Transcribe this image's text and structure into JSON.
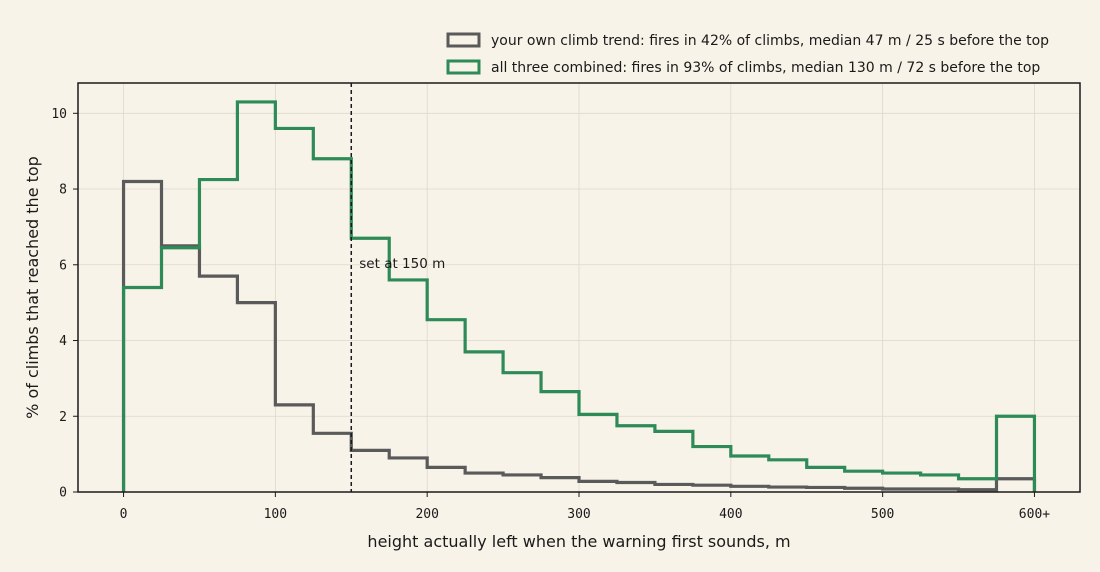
{
  "chart_data": {
    "type": "histogram",
    "xlabel": "height actually left when the warning first sounds, m",
    "ylabel": "% of climbs that reached the top",
    "xlim": [
      -30,
      630
    ],
    "ylim": [
      0,
      10.8
    ],
    "x_ticks": [
      0,
      100,
      200,
      300,
      400,
      500,
      600
    ],
    "x_tick_labels": [
      "0",
      "100",
      "200",
      "300",
      "400",
      "500",
      "600+"
    ],
    "y_ticks": [
      0,
      2,
      4,
      6,
      8,
      10
    ],
    "y_tick_labels": [
      "0",
      "2",
      "4",
      "6",
      "8",
      "10"
    ],
    "grid": true,
    "legend_position": "top-right",
    "bin_edges": [
      0,
      25,
      50,
      75,
      100,
      125,
      150,
      175,
      200,
      225,
      250,
      275,
      300,
      325,
      350,
      375,
      400,
      425,
      450,
      475,
      500,
      525,
      550,
      575,
      600
    ],
    "series": [
      {
        "name": "your own climb trend: fires in 42% of climbs, median 47 m / 25 s before the top",
        "color": "#5a5a5a",
        "values": [
          8.2,
          6.5,
          5.7,
          5.0,
          2.3,
          1.55,
          1.1,
          0.9,
          0.65,
          0.5,
          0.45,
          0.38,
          0.28,
          0.25,
          0.2,
          0.18,
          0.15,
          0.13,
          0.12,
          0.1,
          0.08,
          0.08,
          0.06,
          0.35
        ]
      },
      {
        "name": "all three combined: fires in 93% of climbs, median 130 m / 72 s before the top",
        "color": "#2e8b57",
        "values": [
          5.4,
          6.45,
          8.25,
          10.3,
          9.6,
          8.8,
          6.7,
          5.6,
          4.55,
          3.7,
          3.15,
          2.65,
          2.05,
          1.75,
          1.6,
          1.2,
          0.95,
          0.85,
          0.65,
          0.55,
          0.5,
          0.45,
          0.35,
          2.0
        ]
      }
    ],
    "annotations": [
      {
        "type": "vline",
        "x": 150,
        "style": "dashed",
        "label": "set at 150 m"
      }
    ]
  }
}
